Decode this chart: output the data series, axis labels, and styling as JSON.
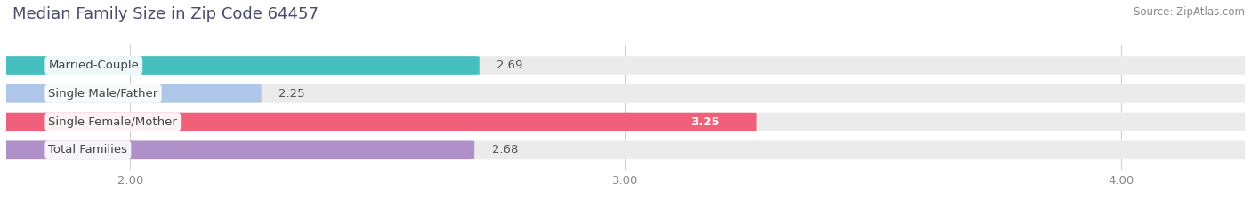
{
  "title": "Median Family Size in Zip Code 64457",
  "source": "Source: ZipAtlas.com",
  "categories": [
    "Married-Couple",
    "Single Male/Father",
    "Single Female/Mother",
    "Total Families"
  ],
  "values": [
    2.69,
    2.25,
    3.25,
    2.68
  ],
  "bar_colors": [
    "#45bfbf",
    "#aec6e8",
    "#f0607a",
    "#b090c8"
  ],
  "background_color": "#ffffff",
  "bar_bg_color": "#ebebeb",
  "xlim": [
    1.75,
    4.25
  ],
  "xlim_start": 1.75,
  "xticks": [
    2.0,
    3.0,
    4.0
  ],
  "xticklabels": [
    "2.00",
    "3.00",
    "4.00"
  ],
  "label_fontsize": 9.5,
  "value_fontsize": 9.5,
  "title_fontsize": 13,
  "source_fontsize": 8.5,
  "bar_height": 0.62,
  "value_inside_threshold": 3.0
}
